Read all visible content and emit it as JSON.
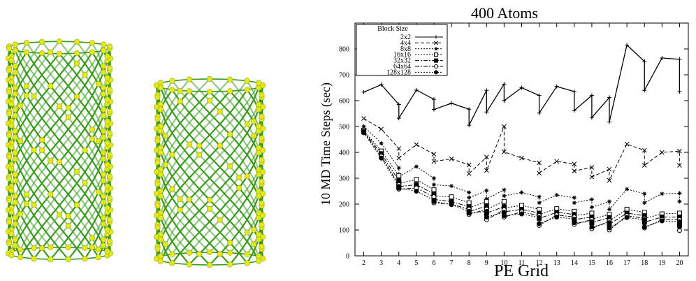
{
  "nanotubes": {
    "left_label": "",
    "right_label": "",
    "bond_color": "#3a9a1e",
    "atom_color": "#e3e81b"
  },
  "chart_data": {
    "type": "line",
    "title": "400 Atoms",
    "xlabel": "PE Grid",
    "ylabel": "10 MD Time Steps (sec)",
    "ylim": [
      0,
      900
    ],
    "xlim": [
      1.5,
      20.5
    ],
    "yticks": [
      0,
      100,
      200,
      300,
      400,
      500,
      600,
      700,
      800
    ],
    "legend_title": "Block Size",
    "legend_position": "top-left",
    "grid": false,
    "series": [
      {
        "name": "2x2",
        "style": "solid",
        "marker": "+",
        "points": [
          [
            2,
            633
          ],
          [
            3,
            662
          ],
          [
            4,
            585
          ],
          [
            4,
            532
          ],
          [
            5,
            641
          ],
          [
            6,
            605
          ],
          [
            6,
            566
          ],
          [
            7,
            590
          ],
          [
            8,
            567
          ],
          [
            8,
            505
          ],
          [
            9,
            640
          ],
          [
            9,
            556
          ],
          [
            10,
            664
          ],
          [
            10,
            600
          ],
          [
            11,
            650
          ],
          [
            12,
            620
          ],
          [
            12,
            552
          ],
          [
            13,
            655
          ],
          [
            14,
            635
          ],
          [
            14,
            562
          ],
          [
            15,
            620
          ],
          [
            15,
            535
          ],
          [
            16,
            612
          ],
          [
            16,
            518
          ],
          [
            17,
            815
          ],
          [
            18,
            752
          ],
          [
            18,
            640
          ],
          [
            19,
            765
          ],
          [
            20,
            760
          ],
          [
            20,
            635
          ]
        ]
      },
      {
        "name": "4x4",
        "style": "dashed",
        "marker": "x",
        "points": [
          [
            2,
            531
          ],
          [
            3,
            490
          ],
          [
            4,
            415
          ],
          [
            4,
            378
          ],
          [
            5,
            430
          ],
          [
            6,
            393
          ],
          [
            6,
            365
          ],
          [
            7,
            375
          ],
          [
            8,
            352
          ],
          [
            8,
            318
          ],
          [
            9,
            382
          ],
          [
            9,
            330
          ],
          [
            10,
            500
          ],
          [
            10,
            402
          ],
          [
            11,
            378
          ],
          [
            12,
            360
          ],
          [
            12,
            320
          ],
          [
            13,
            365
          ],
          [
            14,
            355
          ],
          [
            14,
            328
          ],
          [
            15,
            342
          ],
          [
            15,
            305
          ],
          [
            16,
            335
          ],
          [
            16,
            292
          ],
          [
            17,
            432
          ],
          [
            18,
            408
          ],
          [
            18,
            350
          ],
          [
            19,
            400
          ],
          [
            20,
            405
          ],
          [
            20,
            350
          ]
        ]
      },
      {
        "name": "8x8",
        "style": "dotted",
        "marker": "*",
        "points": [
          [
            2,
            500
          ],
          [
            3,
            435
          ],
          [
            4,
            340
          ],
          [
            4,
            305
          ],
          [
            5,
            345
          ],
          [
            6,
            300
          ],
          [
            6,
            275
          ],
          [
            7,
            270
          ],
          [
            8,
            245
          ],
          [
            8,
            225
          ],
          [
            9,
            252
          ],
          [
            9,
            220
          ],
          [
            10,
            255
          ],
          [
            10,
            232
          ],
          [
            11,
            245
          ],
          [
            12,
            228
          ],
          [
            12,
            205
          ],
          [
            13,
            235
          ],
          [
            14,
            225
          ],
          [
            14,
            205
          ],
          [
            15,
            218
          ],
          [
            15,
            188
          ],
          [
            16,
            210
          ],
          [
            16,
            180
          ],
          [
            17,
            258
          ],
          [
            18,
            240
          ],
          [
            18,
            205
          ],
          [
            19,
            240
          ],
          [
            20,
            242
          ],
          [
            20,
            210
          ]
        ]
      },
      {
        "name": "16x16",
        "style": "dotted",
        "marker": "square",
        "points": [
          [
            2,
            485
          ],
          [
            3,
            405
          ],
          [
            4,
            310
          ],
          [
            4,
            280
          ],
          [
            5,
            295
          ],
          [
            6,
            255
          ],
          [
            6,
            232
          ],
          [
            7,
            228
          ],
          [
            8,
            205
          ],
          [
            8,
            185
          ],
          [
            9,
            210
          ],
          [
            9,
            180
          ],
          [
            10,
            210
          ],
          [
            10,
            185
          ],
          [
            11,
            195
          ],
          [
            12,
            180
          ],
          [
            12,
            160
          ],
          [
            13,
            182
          ],
          [
            14,
            172
          ],
          [
            14,
            155
          ],
          [
            15,
            165
          ],
          [
            15,
            142
          ],
          [
            16,
            160
          ],
          [
            16,
            135
          ],
          [
            17,
            180
          ],
          [
            18,
            168
          ],
          [
            18,
            145
          ],
          [
            19,
            162
          ],
          [
            20,
            165
          ],
          [
            20,
            140
          ]
        ]
      },
      {
        "name": "32x32",
        "style": "dashdot",
        "marker": "filled-square",
        "points": [
          [
            2,
            480
          ],
          [
            3,
            395
          ],
          [
            4,
            290
          ],
          [
            4,
            268
          ],
          [
            5,
            275
          ],
          [
            6,
            240
          ],
          [
            6,
            218
          ],
          [
            7,
            210
          ],
          [
            8,
            190
          ],
          [
            8,
            172
          ],
          [
            9,
            192
          ],
          [
            9,
            165
          ],
          [
            10,
            190
          ],
          [
            10,
            170
          ],
          [
            11,
            180
          ],
          [
            12,
            165
          ],
          [
            12,
            145
          ],
          [
            13,
            168
          ],
          [
            14,
            160
          ],
          [
            14,
            140
          ],
          [
            15,
            150
          ],
          [
            15,
            128
          ],
          [
            16,
            148
          ],
          [
            16,
            122
          ],
          [
            17,
            165
          ],
          [
            18,
            155
          ],
          [
            18,
            130
          ],
          [
            19,
            150
          ],
          [
            20,
            150
          ],
          [
            20,
            125
          ]
        ]
      },
      {
        "name": "64x64",
        "style": "dashdot",
        "marker": "circle",
        "points": [
          [
            2,
            478
          ],
          [
            3,
            385
          ],
          [
            4,
            275
          ],
          [
            4,
            258
          ],
          [
            5,
            262
          ],
          [
            6,
            228
          ],
          [
            6,
            205
          ],
          [
            7,
            200
          ],
          [
            8,
            180
          ],
          [
            8,
            160
          ],
          [
            9,
            180
          ],
          [
            9,
            140
          ],
          [
            10,
            178
          ],
          [
            10,
            150
          ],
          [
            11,
            170
          ],
          [
            12,
            155
          ],
          [
            12,
            118
          ],
          [
            13,
            158
          ],
          [
            14,
            150
          ],
          [
            14,
            122
          ],
          [
            15,
            140
          ],
          [
            15,
            105
          ],
          [
            16,
            135
          ],
          [
            16,
            100
          ],
          [
            17,
            155
          ],
          [
            18,
            145
          ],
          [
            18,
            108
          ],
          [
            19,
            140
          ],
          [
            20,
            140
          ],
          [
            20,
            98
          ]
        ]
      },
      {
        "name": "128x128",
        "style": "dotted",
        "marker": "filled-circle",
        "points": [
          [
            2,
            476
          ],
          [
            3,
            378
          ],
          [
            4,
            268
          ],
          [
            4,
            262
          ],
          [
            5,
            250
          ],
          [
            6,
            215
          ],
          [
            6,
            210
          ],
          [
            7,
            198
          ],
          [
            8,
            172
          ],
          [
            8,
            165
          ],
          [
            9,
            172
          ],
          [
            9,
            150
          ],
          [
            10,
            168
          ],
          [
            10,
            155
          ],
          [
            11,
            162
          ],
          [
            12,
            148
          ],
          [
            12,
            125
          ],
          [
            13,
            150
          ],
          [
            14,
            142
          ],
          [
            14,
            128
          ],
          [
            15,
            132
          ],
          [
            15,
            112
          ],
          [
            16,
            128
          ],
          [
            16,
            108
          ],
          [
            17,
            148
          ],
          [
            18,
            140
          ],
          [
            18,
            112
          ],
          [
            19,
            135
          ],
          [
            20,
            132
          ],
          [
            20,
            112
          ]
        ]
      }
    ]
  }
}
